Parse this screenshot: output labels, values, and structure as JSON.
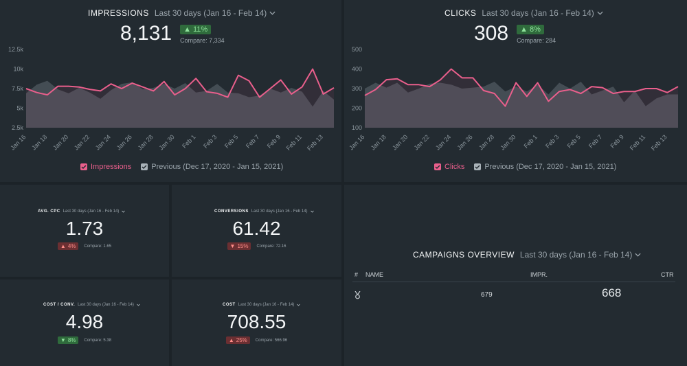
{
  "impressions": {
    "title": "IMPRESSIONS",
    "period": "Last 30 days (Jan 16 - Feb 14)",
    "value": "8,131",
    "delta": "11%",
    "compare": "Compare: 7,334",
    "legend_current": "Impressions",
    "legend_previous": "Previous (Dec 17, 2020 - Jan 15, 2021)"
  },
  "clicks": {
    "title": "CLICKS",
    "period": "Last 30 days (Jan 16 - Feb 14)",
    "value": "308",
    "delta": "8%",
    "compare": "Compare: 284",
    "legend_current": "Clicks",
    "legend_previous": "Previous (Dec 17, 2020 - Jan 15, 2021)"
  },
  "kpis": {
    "avg_cpc": {
      "title": "AVG. CPC",
      "period": "Last 30 days (Jan 16 - Feb 14)",
      "value": "1.73",
      "delta": "4%",
      "direction": "up-bad",
      "compare": "Compare: 1.65"
    },
    "conversions": {
      "title": "CONVERSIONS",
      "period": "Last 30 days (Jan 16 - Feb 14)",
      "value": "61.42",
      "delta": "15%",
      "direction": "down",
      "compare": "Compare: 72.16"
    },
    "cost_conv": {
      "title": "COST / CONV.",
      "period": "Last 30 days (Jan 16 - Feb 14)",
      "value": "4.98",
      "delta": "8%",
      "direction": "down-good",
      "compare": "Compare: 5.38"
    },
    "cost": {
      "title": "COST",
      "period": "Last 30 days (Jan 16 - Feb 14)",
      "value": "708.55",
      "delta": "25%",
      "direction": "up-bad",
      "compare": "Compare: 566.96"
    }
  },
  "campaigns": {
    "title": "CAMPAIGNS OVERVIEW",
    "period": "Last 30 days (Jan 16 - Feb 14)",
    "headers": {
      "num": "#",
      "name": "NAME",
      "impr": "IMPR.",
      "ctr": "CTR"
    },
    "row": {
      "impr": "679",
      "ctr": "668"
    }
  },
  "colors": {
    "accent": "#ea5f8c",
    "previous": "#8c979e",
    "background": "#1c2328",
    "panel": "#232b31",
    "up": "#2f6b3c",
    "down": "#6b2f32"
  },
  "chart_data": [
    {
      "type": "line",
      "ylim": [
        2500,
        12500
      ],
      "yticks": [
        "2.5k",
        "5k",
        "7.5k",
        "10k",
        "12.5k"
      ],
      "xticks": [
        "Jan 16",
        "Jan 18",
        "Jan 20",
        "Jan 22",
        "Jan 24",
        "Jan 26",
        "Jan 28",
        "Jan 30",
        "Feb 1",
        "Feb 3",
        "Feb 5",
        "Feb 7",
        "Feb 9",
        "Feb 11",
        "Feb 13"
      ],
      "series": [
        {
          "name": "Impressions",
          "values": [
            7500,
            7000,
            6700,
            7800,
            7800,
            7700,
            7400,
            7200,
            8100,
            7500,
            8200,
            7700,
            7200,
            8400,
            6700,
            7500,
            8800,
            7100,
            6900,
            6400,
            9200,
            8500,
            6400,
            7500,
            8600,
            6800,
            7700,
            10000,
            6800,
            7600
          ]
        },
        {
          "name": "Previous (Dec 17, 2020 - Jan 15, 2021)",
          "values": [
            6900,
            8000,
            8500,
            7400,
            6900,
            7600,
            7000,
            6200,
            7300,
            8100,
            8300,
            7400,
            7600,
            8100,
            7500,
            8200,
            7000,
            7200,
            8100,
            7000,
            6900,
            6400,
            6600,
            7500,
            7000,
            7600,
            7100,
            5200,
            7200,
            6100
          ]
        }
      ]
    },
    {
      "type": "line",
      "ylim": [
        100,
        500
      ],
      "yticks": [
        "100",
        "200",
        "300",
        "400",
        "500"
      ],
      "xticks": [
        "Jan 16",
        "Jan 18",
        "Jan 20",
        "Jan 22",
        "Jan 24",
        "Jan 26",
        "Jan 28",
        "Jan 30",
        "Feb 1",
        "Feb 3",
        "Feb 5",
        "Feb 7",
        "Feb 9",
        "Feb 11",
        "Feb 13"
      ],
      "series": [
        {
          "name": "Clicks",
          "values": [
            265,
            295,
            345,
            350,
            320,
            320,
            310,
            345,
            400,
            355,
            355,
            290,
            275,
            210,
            330,
            260,
            330,
            235,
            285,
            295,
            275,
            310,
            305,
            275,
            285,
            285,
            300,
            300,
            280,
            310
          ]
        },
        {
          "name": "Previous (Dec 17, 2020 - Jan 15, 2021)",
          "values": [
            300,
            330,
            305,
            330,
            280,
            300,
            325,
            330,
            320,
            300,
            305,
            310,
            335,
            285,
            310,
            285,
            320,
            270,
            330,
            300,
            335,
            270,
            290,
            310,
            230,
            290,
            210,
            250,
            270,
            270
          ]
        }
      ]
    }
  ]
}
